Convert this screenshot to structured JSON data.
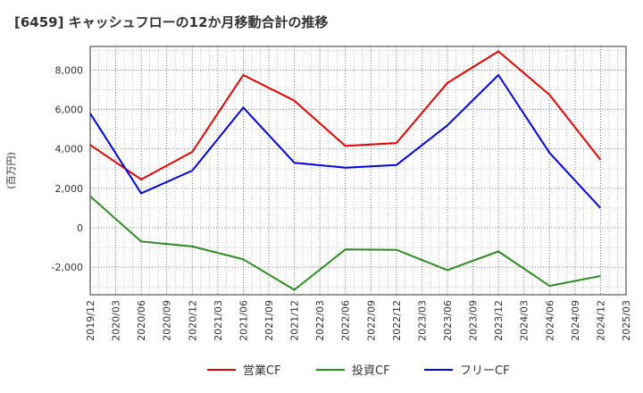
{
  "chart_data": {
    "type": "line",
    "title": "[6459]  キャッシュフローの12か月移動合計の推移",
    "ylabel": "(百万円)",
    "xlabel": "",
    "ylim": [
      -3400,
      9200
    ],
    "yticks": [
      -2000,
      0,
      2000,
      4000,
      6000,
      8000
    ],
    "ytick_labels": [
      "-2,000",
      "0",
      "2,000",
      "4,000",
      "6,000",
      "8,000"
    ],
    "categories": [
      "2019/12",
      "2020/03",
      "2020/06",
      "2020/09",
      "2020/12",
      "2021/03",
      "2021/06",
      "2021/09",
      "2021/12",
      "2022/03",
      "2022/06",
      "2022/09",
      "2022/12",
      "2023/03",
      "2023/06",
      "2023/09",
      "2023/12",
      "2024/03",
      "2024/06",
      "2024/09",
      "2024/12",
      "2025/03"
    ],
    "series": [
      {
        "name": "営業CF",
        "color": "#e00000",
        "points": [
          [
            0,
            4200
          ],
          [
            2,
            2450
          ],
          [
            4,
            3850
          ],
          [
            6,
            7750
          ],
          [
            8,
            6450
          ],
          [
            10,
            4150
          ],
          [
            12,
            4300
          ],
          [
            14,
            7350
          ],
          [
            16,
            8950
          ],
          [
            18,
            6750
          ],
          [
            20,
            3450
          ]
        ]
      },
      {
        "name": "投資CF",
        "color": "#2e8b22",
        "points": [
          [
            0,
            1600
          ],
          [
            2,
            -700
          ],
          [
            4,
            -950
          ],
          [
            6,
            -1600
          ],
          [
            8,
            -3150
          ],
          [
            10,
            -1100
          ],
          [
            12,
            -1120
          ],
          [
            14,
            -2150
          ],
          [
            16,
            -1200
          ],
          [
            18,
            -2950
          ],
          [
            20,
            -2450
          ]
        ]
      },
      {
        "name": "フリーCF",
        "color": "#0000dd",
        "points": [
          [
            0,
            5800
          ],
          [
            2,
            1750
          ],
          [
            4,
            2900
          ],
          [
            6,
            6100
          ],
          [
            8,
            3300
          ],
          [
            10,
            3050
          ],
          [
            12,
            3180
          ],
          [
            14,
            5200
          ],
          [
            16,
            7750
          ],
          [
            18,
            3800
          ],
          [
            20,
            1000
          ]
        ]
      }
    ],
    "grid": true,
    "legend": "bottom"
  }
}
